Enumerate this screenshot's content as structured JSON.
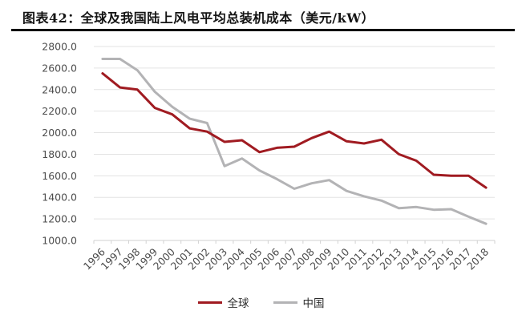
{
  "header": {
    "title": "图表42：全球及我国陆上风电平均总装机成本（美元/kW）"
  },
  "chart_data": {
    "type": "line",
    "title": "全球及我国陆上风电平均总装机成本（美元/kW）",
    "xlabel": "",
    "ylabel": "",
    "x": [
      1996,
      1997,
      1998,
      1999,
      2000,
      2001,
      2002,
      2003,
      2004,
      2005,
      2006,
      2007,
      2008,
      2009,
      2010,
      2011,
      2012,
      2013,
      2014,
      2015,
      2016,
      2017,
      2018
    ],
    "series": [
      {
        "key": "global",
        "name": "全球",
        "color": "#A01B21",
        "values": [
          2550,
          2420,
          2400,
          2230,
          2170,
          2040,
          2010,
          1915,
          1930,
          1820,
          1860,
          1870,
          1950,
          2010,
          1920,
          1900,
          1935,
          1800,
          1740,
          1610,
          1600,
          1600,
          1490
        ]
      },
      {
        "key": "china",
        "name": "中国",
        "color": "#B3B3B5",
        "values": [
          2685,
          2685,
          2580,
          2380,
          2240,
          2130,
          2090,
          1690,
          1760,
          1650,
          1570,
          1480,
          1530,
          1560,
          1460,
          1410,
          1370,
          1300,
          1310,
          1285,
          1290,
          1220,
          1155
        ]
      }
    ],
    "ylim": [
      1000,
      2800
    ],
    "ytick_step": 200,
    "ytick_labels": [
      "1000.0",
      "1200.0",
      "1400.0",
      "1600.0",
      "1800.0",
      "2000.0",
      "2200.0",
      "2400.0",
      "2600.0",
      "2800.0"
    ],
    "grid": "horizontal",
    "legend_position": "bottom",
    "style": {
      "grid_color": "#E3E3E3",
      "axis_color": "#D2D2D2",
      "tick_color": "#4D4D4D",
      "line_width": 3
    }
  }
}
